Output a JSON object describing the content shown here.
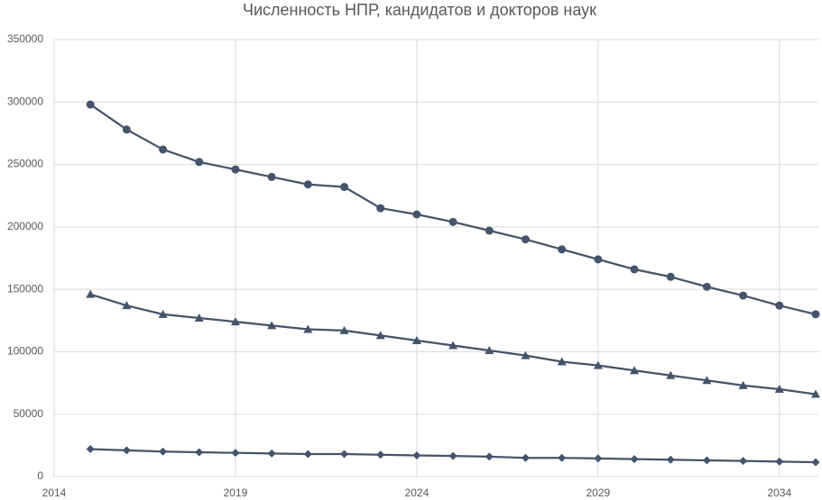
{
  "chart_data": {
    "type": "line",
    "title": "Численность НПР, кандидатов и докторов наук",
    "x": [
      2015,
      2016,
      2017,
      2018,
      2019,
      2020,
      2021,
      2022,
      2023,
      2024,
      2025,
      2026,
      2027,
      2028,
      2029,
      2030,
      2031,
      2032,
      2033,
      2034,
      2035
    ],
    "series": [
      {
        "color": "#44546a",
        "marker": "circle",
        "values": [
          298000,
          278000,
          262000,
          252000,
          246000,
          240000,
          234000,
          232000,
          215000,
          210000,
          204000,
          197000,
          190000,
          182000,
          174000,
          166000,
          160000,
          152000,
          145000,
          137000,
          130000
        ]
      },
      {
        "color": "#44546a",
        "marker": "triangle",
        "values": [
          146000,
          137000,
          130000,
          127000,
          124000,
          121000,
          118000,
          117000,
          113000,
          109000,
          105000,
          101000,
          97000,
          92000,
          89000,
          85000,
          81000,
          77000,
          73000,
          70000,
          66000
        ]
      },
      {
        "color": "#44546a",
        "marker": "diamond",
        "values": [
          22000,
          21000,
          20000,
          19500,
          19000,
          18500,
          18000,
          18000,
          17500,
          17000,
          16500,
          16000,
          15000,
          15000,
          14500,
          14000,
          13500,
          13000,
          12500,
          12000,
          11500
        ]
      }
    ],
    "xlim": [
      2014,
      2035
    ],
    "xticks": [
      2014,
      2019,
      2024,
      2029,
      2034
    ],
    "ylim": [
      0,
      350000
    ],
    "yticks": [
      0,
      50000,
      100000,
      150000,
      200000,
      250000,
      300000,
      350000
    ],
    "grid": true
  }
}
